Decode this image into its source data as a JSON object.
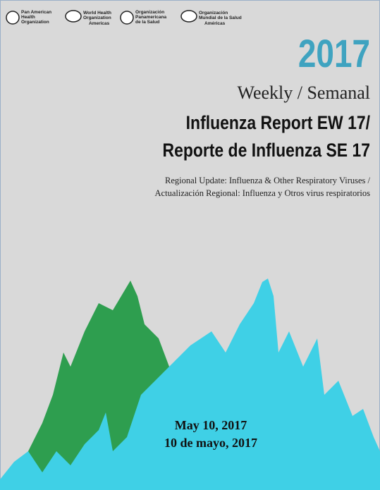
{
  "logos": [
    {
      "lines": [
        "Pan American",
        "Health",
        "Organization"
      ]
    },
    {
      "lines": [
        "World Health",
        "Organization"
      ],
      "region": "Americas"
    },
    {
      "lines": [
        "Organización",
        "Panamericana",
        "de la Salud"
      ]
    },
    {
      "lines": [
        "Organización",
        "Mundial de la Salud"
      ],
      "region": "Américas"
    }
  ],
  "year": "2017",
  "title": {
    "line1": "Weekly / Semanal",
    "line2": "Influenza Report EW 17/",
    "line3": "Reporte de Influenza SE 17"
  },
  "subtitle": [
    "Regional Update: Influenza & Other Respiratory Viruses /",
    "Actualización Regional: Influenza y Otros virus respiratorios"
  ],
  "date": [
    "May 10, 2017",
    "10 de mayo, 2017"
  ]
}
